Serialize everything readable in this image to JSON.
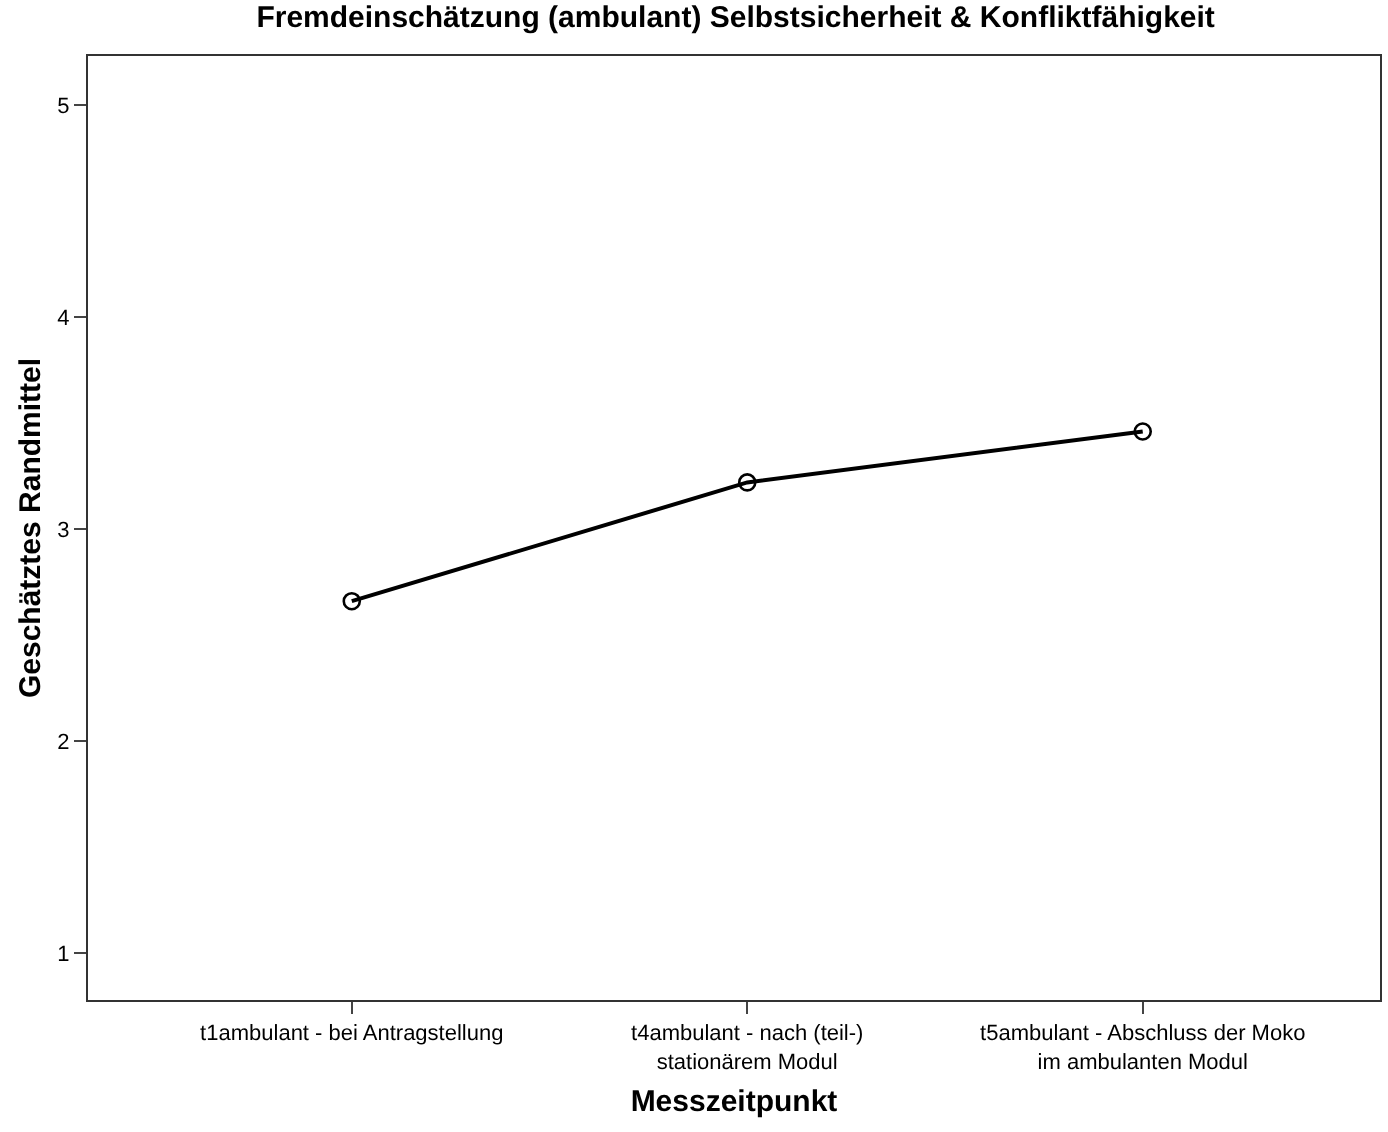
{
  "chart_data": {
    "type": "line",
    "title": "Fremdeinschätzung (ambulant) Selbstsicherheit & Konfliktfähigkeit",
    "xlabel": "Messzeitpunkt",
    "ylabel": "Geschätztes Randmittel",
    "categories": [
      "t1ambulant - bei Antragstellung",
      "t4ambulant - nach (teil-)\nstationärem Modul",
      "t5ambulant - Abschluss der Moko\nim ambulanten Modul"
    ],
    "series": [
      {
        "color": "#000000",
        "values": [
          2.66,
          3.22,
          3.46
        ]
      }
    ],
    "ylim": [
      0.78,
      5.23
    ],
    "yticks": [
      1,
      2,
      3,
      4,
      5
    ],
    "marker": "circle",
    "line_style": "solid"
  }
}
